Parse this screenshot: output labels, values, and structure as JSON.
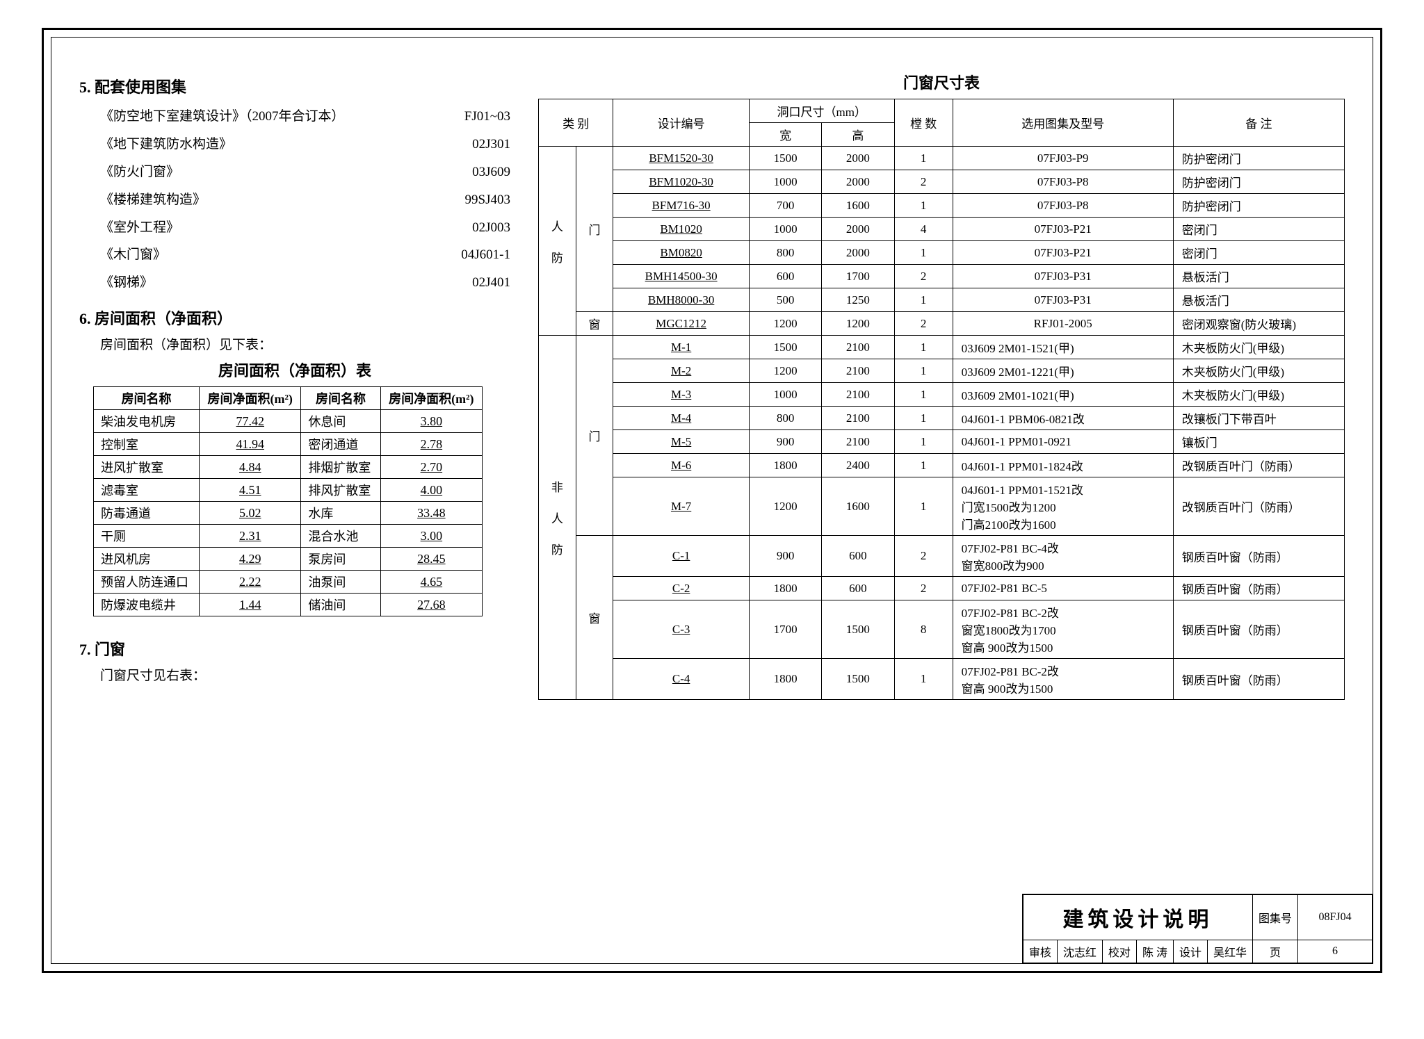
{
  "section5_title": "5. 配套使用图集",
  "refs": [
    {
      "name": "《防空地下室建筑设计》（2007年合订本）",
      "code": "FJ01~03"
    },
    {
      "name": "《地下建筑防水构造》",
      "code": "02J301"
    },
    {
      "name": "《防火门窗》",
      "code": "03J609"
    },
    {
      "name": "《楼梯建筑构造》",
      "code": "99SJ403"
    },
    {
      "name": "《室外工程》",
      "code": "02J003"
    },
    {
      "name": "《木门窗》",
      "code": "04J601-1"
    },
    {
      "name": "《钢梯》",
      "code": "02J401"
    }
  ],
  "section6_title": "6. 房间面积（净面积）",
  "section6_intro": "房间面积（净面积）见下表：",
  "area_table_title": "房间面积（净面积）表",
  "area_headers": [
    "房间名称",
    "房间净面积(m²)",
    "房间名称",
    "房间净面积(m²)"
  ],
  "area_rows": [
    [
      "柴油发电机房",
      "77.42",
      "休息间",
      "3.80"
    ],
    [
      "控制室",
      "41.94",
      "密闭通道",
      "2.78"
    ],
    [
      "进风扩散室",
      "4.84",
      "排烟扩散室",
      "2.70"
    ],
    [
      "滤毒室",
      "4.51",
      "排风扩散室",
      "4.00"
    ],
    [
      "防毒通道",
      "5.02",
      "水库",
      "33.48"
    ],
    [
      "干厕",
      "2.31",
      "混合水池",
      "3.00"
    ],
    [
      "进风机房",
      "4.29",
      "泵房间",
      "28.45"
    ],
    [
      "预留人防连通口",
      "2.22",
      "油泵间",
      "4.65"
    ],
    [
      "防爆波电缆井",
      "1.44",
      "储油间",
      "27.68"
    ]
  ],
  "section7_title": "7. 门窗",
  "section7_intro": "门窗尺寸见右表：",
  "right_title": "门窗尺寸表",
  "door_headers": {
    "cat": "类  别",
    "code": "设计编号",
    "size": "洞口尺寸（mm）",
    "w": "宽",
    "h": "高",
    "qty": "樘 数",
    "ref": "选用图集及型号",
    "note": "备  注"
  },
  "group1_cat1": "人",
  "group1_cat2": "防",
  "group1_sub_door": "门",
  "group1_sub_win": "窗",
  "group1_rows": [
    [
      "BFM1520-30",
      "1500",
      "2000",
      "1",
      "07FJ03-P9",
      "防护密闭门"
    ],
    [
      "BFM1020-30",
      "1000",
      "2000",
      "2",
      "07FJ03-P8",
      "防护密闭门"
    ],
    [
      "BFM716-30",
      "700",
      "1600",
      "1",
      "07FJ03-P8",
      "防护密闭门"
    ],
    [
      "BM1020",
      "1000",
      "2000",
      "4",
      "07FJ03-P21",
      "密闭门"
    ],
    [
      "BM0820",
      "800",
      "2000",
      "1",
      "07FJ03-P21",
      "密闭门"
    ],
    [
      "BMH14500-30",
      "600",
      "1700",
      "2",
      "07FJ03-P31",
      "悬板活门"
    ],
    [
      "BMH8000-30",
      "500",
      "1250",
      "1",
      "07FJ03-P31",
      "悬板活门"
    ]
  ],
  "group1_win_row": [
    "MGC1212",
    "1200",
    "1200",
    "2",
    "RFJ01-2005",
    "密闭观察窗(防火玻璃)"
  ],
  "group2_cat1": "非",
  "group2_cat2": "人",
  "group2_cat3": "防",
  "group2_sub_door": "门",
  "group2_sub_win": "窗",
  "group2_door_rows": [
    [
      "M-1",
      "1500",
      "2100",
      "1",
      "03J609 2M01-1521(甲)",
      "木夹板防火门(甲级)"
    ],
    [
      "M-2",
      "1200",
      "2100",
      "1",
      "03J609 2M01-1221(甲)",
      "木夹板防火门(甲级)"
    ],
    [
      "M-3",
      "1000",
      "2100",
      "1",
      "03J609 2M01-1021(甲)",
      "木夹板防火门(甲级)"
    ],
    [
      "M-4",
      "800",
      "2100",
      "1",
      "04J601-1 PBM06-0821改",
      "改镶板门下带百叶"
    ],
    [
      "M-5",
      "900",
      "2100",
      "1",
      "04J601-1 PPM01-0921",
      "镶板门"
    ],
    [
      "M-6",
      "1800",
      "2400",
      "1",
      "04J601-1 PPM01-1824改",
      "改钢质百叶门（防雨）"
    ]
  ],
  "group2_m7": {
    "code": "M-7",
    "w": "1200",
    "h": "1600",
    "qty": "1",
    "ref": "04J601-1 PPM01-1521改\n门宽1500改为1200\n门高2100改为1600",
    "note": "改钢质百叶门（防雨）"
  },
  "group2_win_rows": [
    [
      "C-1",
      "900",
      "600",
      "2",
      "07FJ02-P81 BC-4改\n窗宽800改为900",
      "钢质百叶窗（防雨）"
    ],
    [
      "C-2",
      "1800",
      "600",
      "2",
      "07FJ02-P81 BC-5",
      "钢质百叶窗（防雨）"
    ],
    [
      "C-3",
      "1700",
      "1500",
      "8",
      "07FJ02-P81 BC-2改\n窗宽1800改为1700\n窗高 900改为1500",
      "钢质百叶窗（防雨）"
    ],
    [
      "C-4",
      "1800",
      "1500",
      "1",
      "07FJ02-P81 BC-2改\n窗高 900改为1500",
      "钢质百叶窗（防雨）"
    ]
  ],
  "titleblock": {
    "main": "建筑设计说明",
    "tuji_label": "图集号",
    "tuji": "08FJ04",
    "shenhe_label": "审核",
    "shenhe": "沈志红",
    "jiaodui_label": "校对",
    "jiaodui": "陈  涛",
    "sheji_label": "设计",
    "sheji": "吴红华",
    "page_label": "页",
    "page": "6"
  }
}
